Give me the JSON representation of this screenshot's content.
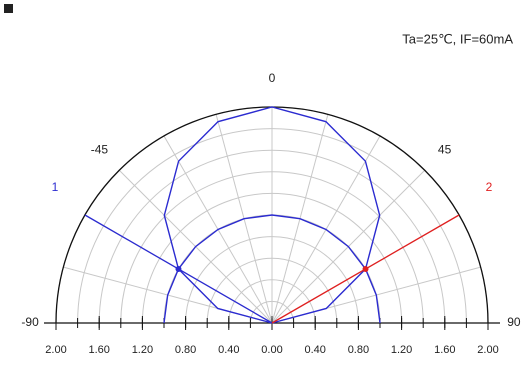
{
  "chart_data": {
    "type": "polar",
    "conditions": "Ta=25℃, IF=60mA",
    "rlim": [
      0,
      2
    ],
    "rgrid": [
      0.2,
      0.4,
      0.6,
      0.8,
      1.0,
      1.2,
      1.4,
      1.6,
      1.8,
      2.0
    ],
    "thetagrid": [
      -90,
      -75,
      -60,
      -45,
      -30,
      -15,
      0,
      15,
      30,
      45,
      60,
      75,
      90
    ],
    "thetaticks": [
      -90,
      -45,
      0,
      45,
      90
    ],
    "xticks": [
      {
        "value": -2,
        "label": "2.00"
      },
      {
        "value": -1.6,
        "label": "1.60"
      },
      {
        "value": -1.2,
        "label": "1.20"
      },
      {
        "value": -0.8,
        "label": "0.80"
      },
      {
        "value": -0.4,
        "label": "0.40"
      },
      {
        "value": 0,
        "label": "0.00"
      },
      {
        "value": 0.4,
        "label": "0.40"
      },
      {
        "value": 0.8,
        "label": "0.80"
      },
      {
        "value": 1.2,
        "label": "1.20"
      },
      {
        "value": 1.6,
        "label": "1.60"
      },
      {
        "value": 2,
        "label": "2.00"
      }
    ],
    "series": [
      {
        "color": "#2b2bd0",
        "theta": [
          -90,
          -75,
          -60,
          -45,
          -30,
          -15,
          0,
          15,
          30,
          45,
          60,
          75,
          90
        ],
        "values": [
          0,
          0.52,
          1.0,
          1.41,
          1.73,
          1.93,
          2.0,
          1.93,
          1.73,
          1.41,
          1.0,
          0.52,
          0
        ]
      },
      {
        "color": "#2b2bd0",
        "theta": [
          -90,
          -75,
          -60,
          -45,
          -30,
          -15,
          0,
          15,
          30,
          45,
          60,
          75,
          90
        ],
        "values": [
          1,
          1,
          1,
          1,
          1,
          1,
          1,
          1,
          1,
          1,
          1,
          1,
          1
        ]
      }
    ],
    "markers": [
      {
        "label": "1",
        "theta": -60,
        "value": 1.0,
        "color": "#2b2bd0"
      },
      {
        "label": "2",
        "theta": 60,
        "value": 1.0,
        "color": "#e02020"
      }
    ]
  }
}
